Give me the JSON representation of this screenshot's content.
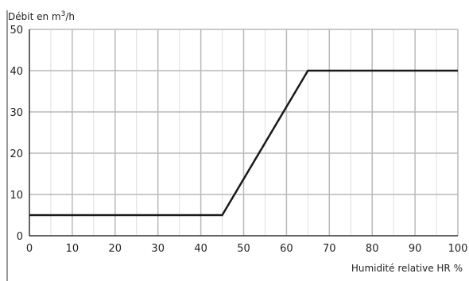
{
  "chart_data": {
    "type": "line",
    "title": "",
    "ylabel_prefix": "Débit en m",
    "ylabel_sup": "3",
    "ylabel_suffix": "/h",
    "xlabel": "Humidité relative HR %",
    "xlim": [
      0,
      100
    ],
    "ylim": [
      0,
      50
    ],
    "x_ticks": [
      0,
      10,
      20,
      30,
      40,
      50,
      60,
      70,
      80,
      90,
      100
    ],
    "y_ticks": [
      0,
      10,
      20,
      30,
      40,
      50
    ],
    "x_tick_labels": [
      "0",
      "10",
      "20",
      "30",
      "40",
      "50",
      "60",
      "70",
      "80",
      "90",
      "100"
    ],
    "y_tick_labels": [
      "0",
      "10",
      "20",
      "30",
      "40",
      "50"
    ],
    "grid": true,
    "minor_x_step": 5,
    "series": [
      {
        "x": [
          0,
          45,
          65,
          100
        ],
        "y": [
          5,
          5,
          40,
          40
        ],
        "color": "#1a1a1a"
      }
    ],
    "colors": {
      "major_grid": "#b9b9b9",
      "minor_grid": "#dedede",
      "axis": "#333333",
      "frame": "#9a9a9a"
    }
  }
}
